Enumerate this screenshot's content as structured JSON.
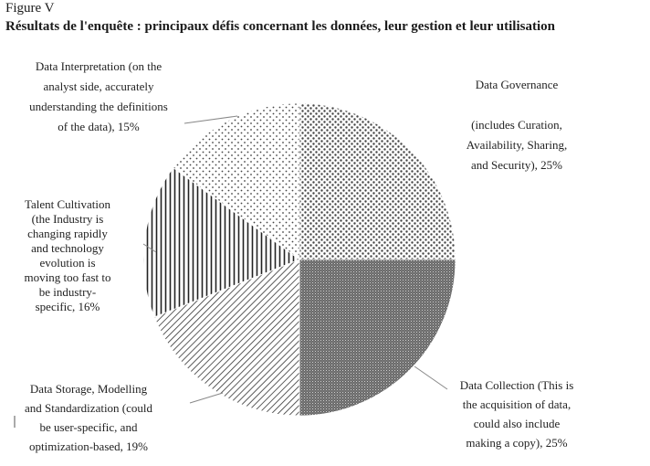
{
  "figure": {
    "label": "Figure V",
    "title": "Résultats de l'enquête : principaux défis concernant les données, leur gestion et leur utilisation"
  },
  "chart_data": {
    "type": "pie",
    "categories": [
      "Data Governance (includes Curation, Availability, Sharing, and Security)",
      "Data Collection (This is the acquisition of data, could also include making a copy)",
      "Data Storage, Modelling and Standardization (could be user-specific, and optimization-based)",
      "Talent Cultivation (the Industry is changing rapidly and technology evolution is moving too fast to be industry-specific)",
      "Data Interpretation (on the analyst side, accurately understanding the definitions of the data)"
    ],
    "values": [
      25,
      25,
      19,
      16,
      15
    ],
    "unit": "%",
    "start": "12 o'clock, clockwise",
    "legend": "none (leader-line labels)",
    "labels": [
      [
        "Data Governance",
        "",
        "(includes Curation,",
        "Availability, Sharing,",
        "and Security), 25%"
      ],
      [
        "Data Collection (This is",
        "the acquisition of data,",
        "could also include",
        "making a copy), 25%"
      ],
      [
        "Data Storage, Modelling",
        "and Standardization (could",
        "be user-specific, and",
        "optimization-based, 19%"
      ],
      [
        "Talent Cultivation",
        "(the Industry is",
        "changing rapidly",
        "and technology",
        "evolution is",
        "moving too fast to",
        "be industry-",
        "specific, 16%"
      ],
      [
        "Data Interpretation (on the",
        "analyst side, accurately",
        "understanding the definitions",
        "of the data), 15%"
      ]
    ],
    "patterns": [
      "dots-grid",
      "fine-dots-dark",
      "diagonal-hatch",
      "vertical-lines",
      "sparse-dots"
    ]
  }
}
